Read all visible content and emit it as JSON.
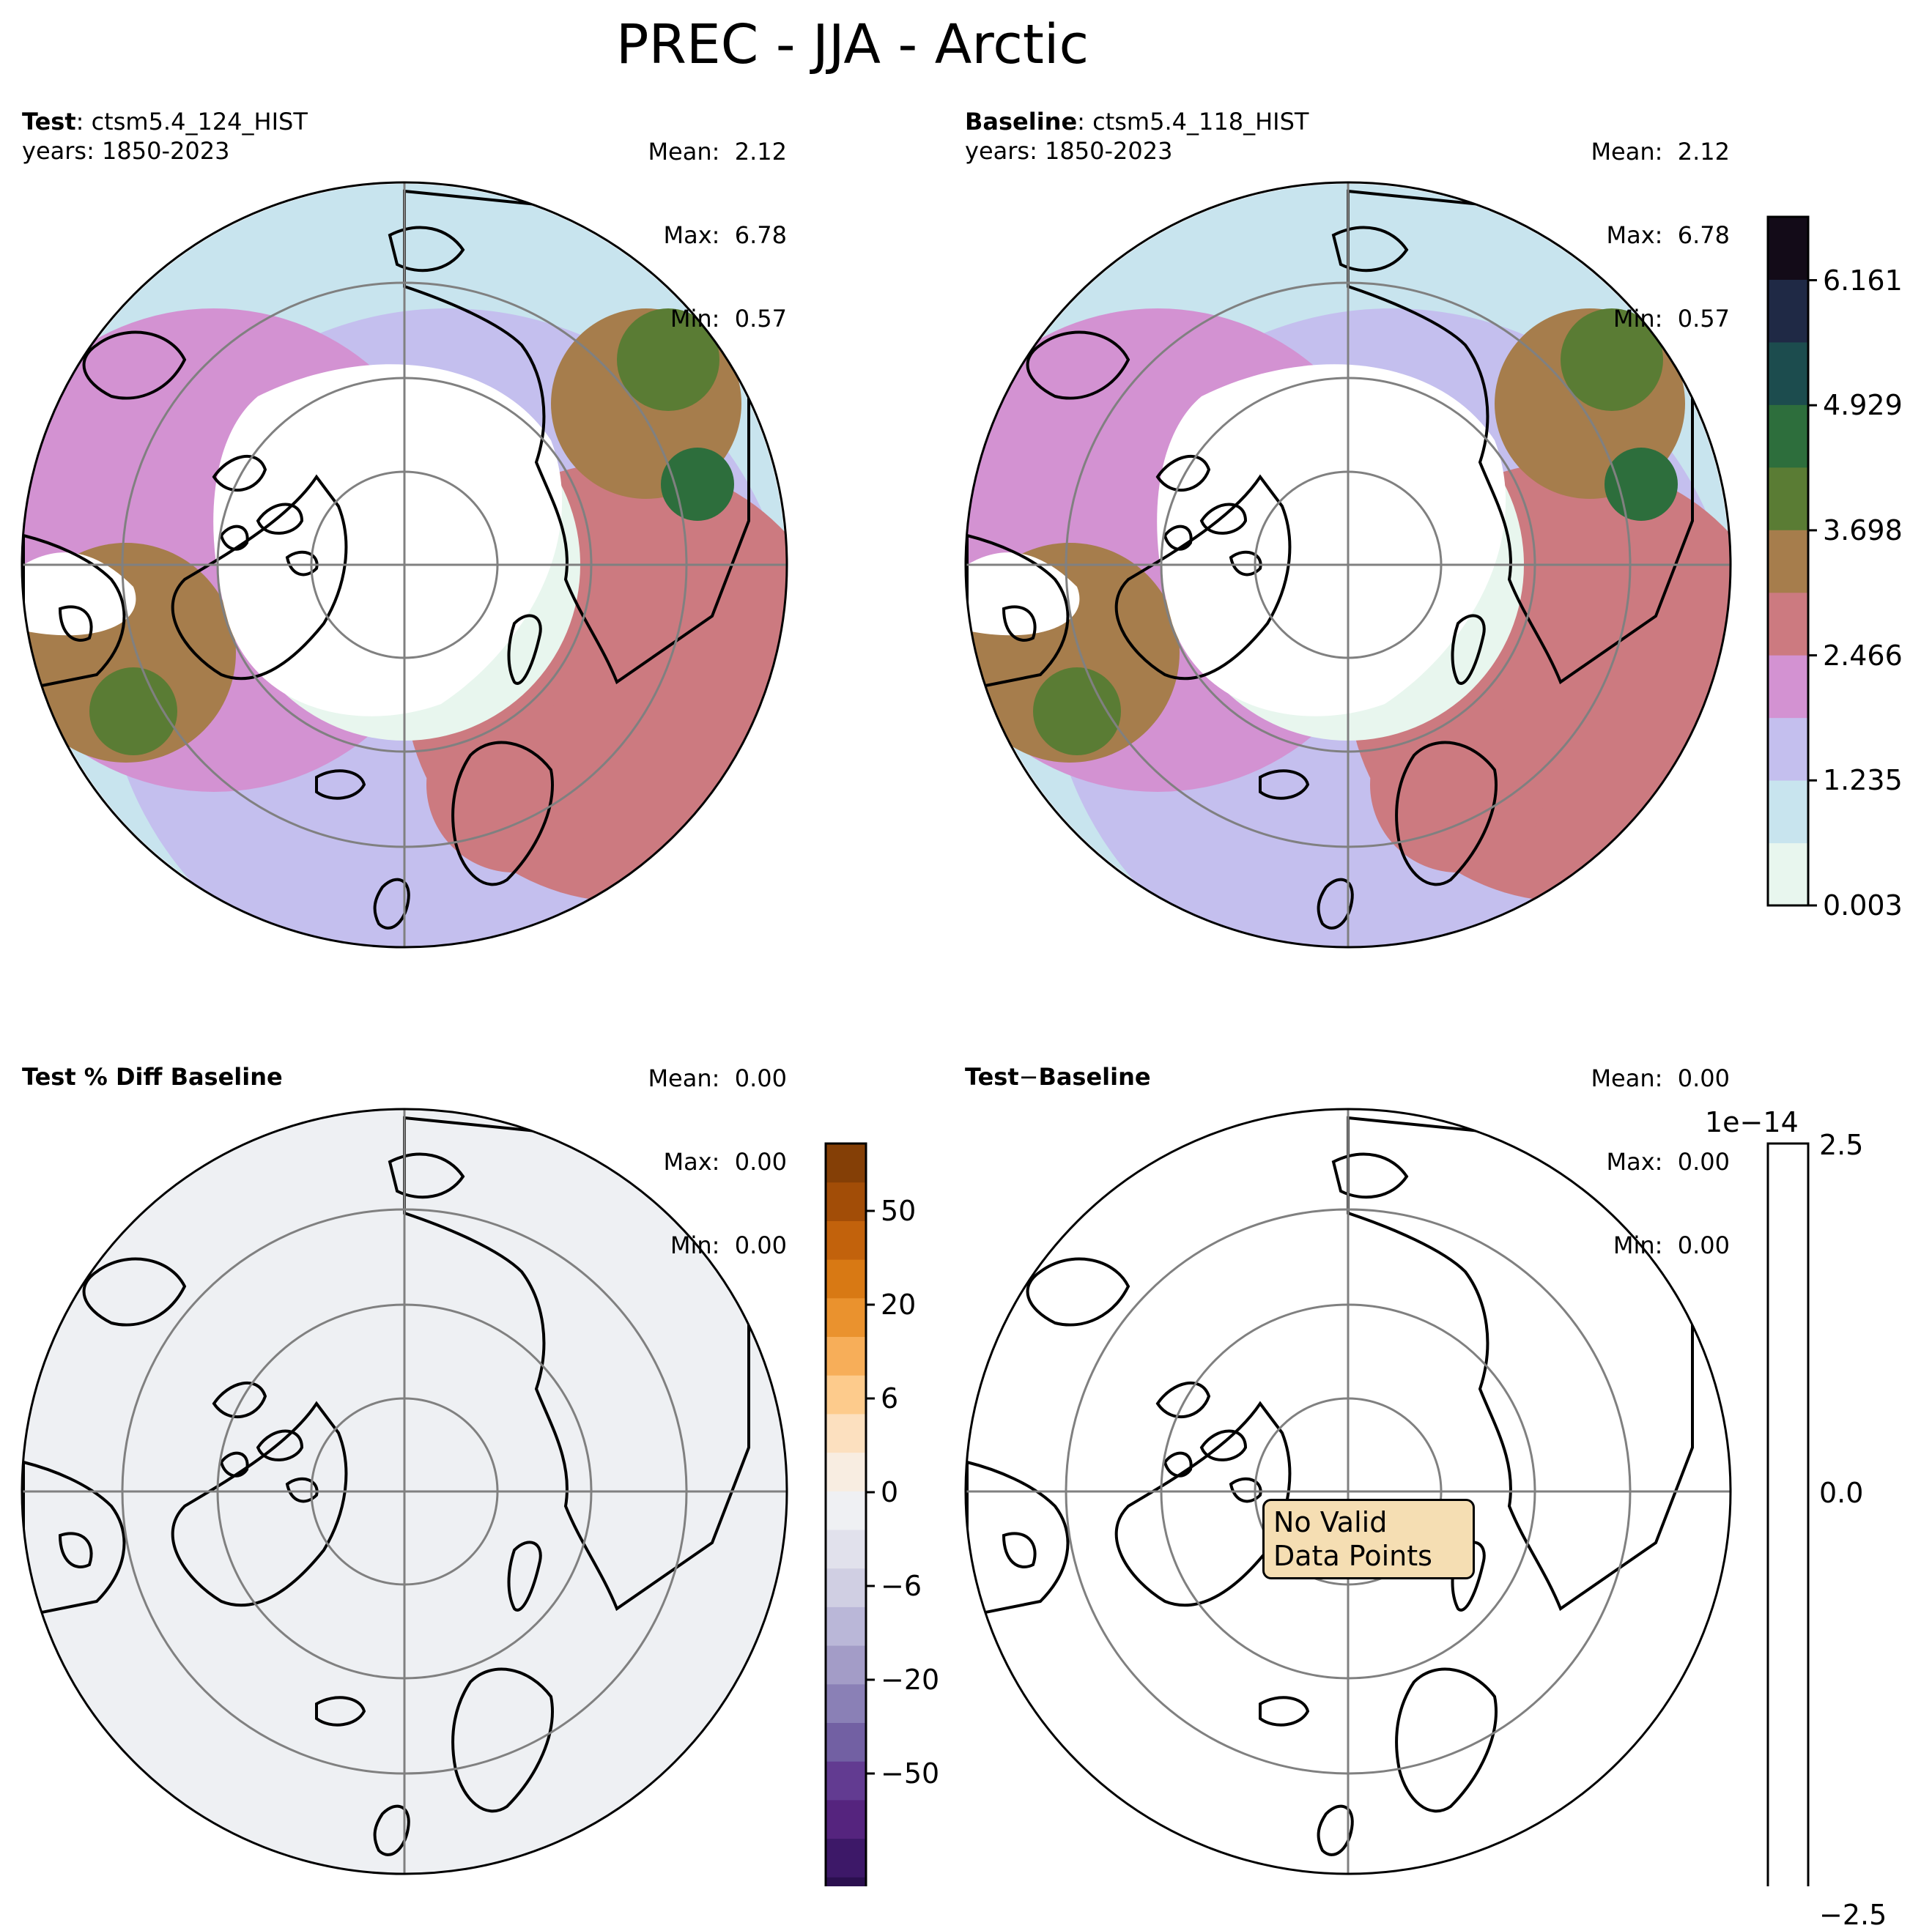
{
  "figure_title": "PREC - JJA - Arctic",
  "chart_data": [
    {
      "type": "polar-map",
      "panel": "test",
      "title_bold": "Test",
      "title_sep": ":",
      "title_rest": "ctsm5.4_124_HIST",
      "subtitle": "years: 1850-2023",
      "stats": [
        {
          "label": "Mean:",
          "value": "2.12"
        },
        {
          "label": "Max:",
          "value": "6.78"
        },
        {
          "label": "Min:",
          "value": "0.57"
        }
      ]
    },
    {
      "type": "polar-map",
      "panel": "baseline",
      "title_bold": "Baseline",
      "title_sep": ":",
      "title_rest": "ctsm5.4_118_HIST",
      "subtitle": "years: 1850-2023",
      "stats": [
        {
          "label": "Mean:",
          "value": "2.12"
        },
        {
          "label": "Max:",
          "value": "6.78"
        },
        {
          "label": "Min:",
          "value": "0.57"
        }
      ],
      "colorbar": {
        "colors": [
          "#e8f6ee",
          "#c8e4ee",
          "#c4bfee",
          "#d392d2",
          "#cc7a80",
          "#a67d4c",
          "#5a7c34",
          "#2d6e3c",
          "#1c4c4e",
          "#1f2945",
          "#130b18"
        ],
        "tick_labels": [
          "0.003",
          "1.235",
          "2.466",
          "3.698",
          "4.929",
          "6.161"
        ]
      }
    },
    {
      "type": "polar-map",
      "panel": "pct_diff",
      "title_bold": "Test % Diff Baseline",
      "stats": [
        {
          "label": "Mean:",
          "value": "0.00"
        },
        {
          "label": "Max:",
          "value": "0.00"
        },
        {
          "label": "Min:",
          "value": "0.00"
        }
      ],
      "fill_color": "#eef0f3",
      "colorbar": {
        "colors": [
          "#2b0f4f",
          "#3d1868",
          "#55247e",
          "#623b91",
          "#7260a3",
          "#8a80b6",
          "#a39cc7",
          "#bab7d8",
          "#d0cfe3",
          "#e1e1ec",
          "#eff0f3",
          "#f8ede1",
          "#fce0bf",
          "#fdcb8c",
          "#f7ae59",
          "#ea922e",
          "#d87914",
          "#c2620c",
          "#a24d07",
          "#843f06"
        ],
        "tick_labels": [
          "50",
          "20",
          "6",
          "0",
          "−6",
          "−20",
          "−50"
        ]
      }
    },
    {
      "type": "polar-map",
      "panel": "abs_diff",
      "title_bold": "Test",
      "title_sep": "−",
      "title_rest": "Baseline",
      "stats": [
        {
          "label": "Mean:",
          "value": "0.00"
        },
        {
          "label": "Max:",
          "value": "0.00"
        },
        {
          "label": "Min:",
          "value": "0.00"
        }
      ],
      "annotation": [
        "No Valid",
        "Data Points"
      ],
      "colorbar": {
        "offset_text": "1e−14",
        "tick_labels": [
          "2.5",
          "0.0",
          "−2.5"
        ]
      }
    }
  ]
}
